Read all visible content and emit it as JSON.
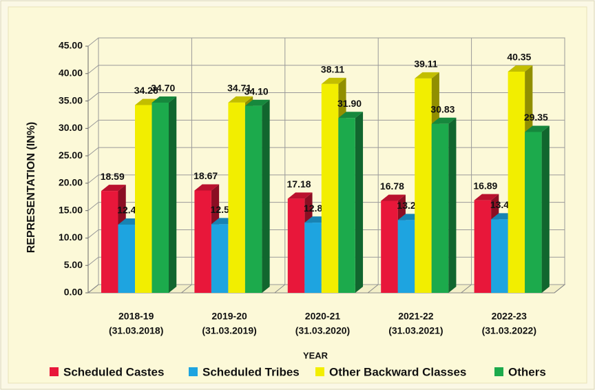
{
  "chart_data": {
    "type": "bar3d",
    "y_label": "REPRESENTATION (IN%)",
    "x_label": "YEAR",
    "categories": [
      [
        "2018-19",
        "(31.03.2018)"
      ],
      [
        "2019-20",
        "(31.03.2019)"
      ],
      [
        "2020-21",
        "(31.03.2020)"
      ],
      [
        "2021-22",
        "(31.03.2021)"
      ],
      [
        "2022-23",
        "(31.03.2022)"
      ]
    ],
    "series": [
      {
        "name": "Scheduled Castes",
        "color": "#e8173a",
        "values": [
          18.59,
          18.67,
          17.18,
          16.78,
          16.89
        ]
      },
      {
        "name": "Scheduled Tribes",
        "color": "#1ea4e0",
        "values": [
          12.45,
          12.52,
          12.81,
          13.28,
          13.41
        ]
      },
      {
        "name": "Other Backward Classes",
        "color": "#f2ee00",
        "values": [
          34.26,
          34.71,
          38.11,
          39.11,
          40.35
        ]
      },
      {
        "name": "Others",
        "color": "#1caa4c",
        "values": [
          34.7,
          34.1,
          31.9,
          30.83,
          29.35
        ],
        "value_labels": [
          "34.70",
          "34.10",
          "31.90",
          "30.83",
          "29.35"
        ]
      }
    ],
    "ylim": [
      0,
      45
    ],
    "yticks": [
      {
        "value": 0,
        "label": "0.00"
      },
      {
        "value": 5,
        "label": "5.00"
      },
      {
        "value": 10,
        "label": "10.00"
      },
      {
        "value": 15,
        "label": "15.00"
      },
      {
        "value": 20,
        "label": "20.00"
      },
      {
        "value": 25,
        "label": "25.00"
      },
      {
        "value": 30,
        "label": "30.00"
      },
      {
        "value": 35,
        "label": "35.00"
      },
      {
        "value": 40,
        "label": "40.00"
      },
      {
        "value": 45,
        "label": "45.00"
      }
    ],
    "grid": true,
    "legend": "bottom"
  }
}
